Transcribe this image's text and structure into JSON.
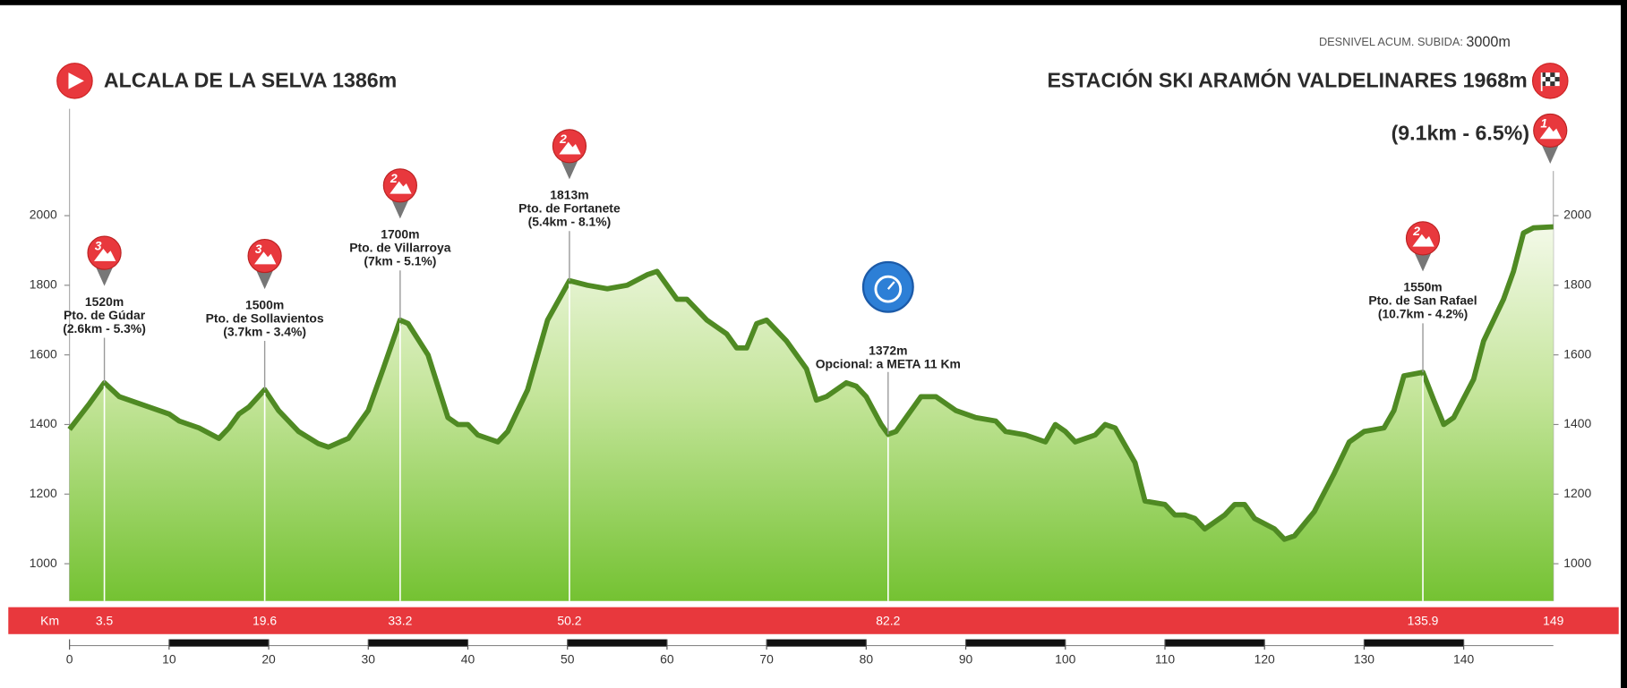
{
  "chart_data": {
    "type": "area",
    "start": "ALCALA DE LA SELVA 1386m",
    "finish": "ESTACIÓN SKI  ARAMÓN VALDELINARES 1968m",
    "climb_label": "DESNIVEL ACUM. SUBIDA:",
    "climb_total": "3000m",
    "finish_climb": {
      "detail": "(9.1km - 6.5%)",
      "category": "1"
    },
    "x": [
      0,
      2,
      3.5,
      5,
      8,
      10,
      11,
      13,
      15,
      16,
      17,
      18,
      19.6,
      21,
      23,
      25,
      26,
      28,
      30,
      31.5,
      33.2,
      34,
      36,
      38,
      39,
      40,
      41,
      43,
      44,
      46,
      48,
      50.2,
      52,
      54,
      56,
      58,
      59,
      60,
      61,
      62,
      64,
      66,
      67,
      68,
      69,
      70,
      72,
      74,
      75,
      76,
      78,
      79,
      80,
      81.5,
      82.2,
      83,
      84,
      85.5,
      87,
      89,
      91,
      93,
      94,
      96,
      98,
      99,
      100,
      101,
      103,
      104,
      105,
      107,
      108,
      110,
      111,
      112,
      113,
      114,
      116,
      117,
      118,
      119,
      121,
      122,
      123,
      125,
      127,
      128.5,
      130,
      132,
      133,
      134,
      135.9,
      137,
      138,
      139,
      141,
      142,
      144,
      145,
      146,
      147,
      149
    ],
    "values": [
      1386,
      1460,
      1520,
      1480,
      1450,
      1430,
      1410,
      1390,
      1360,
      1390,
      1430,
      1450,
      1500,
      1440,
      1380,
      1345,
      1335,
      1360,
      1440,
      1560,
      1700,
      1690,
      1600,
      1420,
      1400,
      1400,
      1370,
      1350,
      1380,
      1500,
      1700,
      1813,
      1800,
      1790,
      1800,
      1830,
      1840,
      1800,
      1760,
      1760,
      1700,
      1660,
      1620,
      1620,
      1690,
      1700,
      1640,
      1560,
      1470,
      1480,
      1520,
      1510,
      1480,
      1400,
      1372,
      1380,
      1420,
      1480,
      1480,
      1440,
      1420,
      1410,
      1380,
      1370,
      1350,
      1400,
      1380,
      1350,
      1370,
      1400,
      1390,
      1290,
      1180,
      1170,
      1140,
      1140,
      1130,
      1100,
      1140,
      1170,
      1170,
      1130,
      1100,
      1070,
      1080,
      1150,
      1260,
      1350,
      1380,
      1390,
      1440,
      1540,
      1550,
      1470,
      1400,
      1420,
      1530,
      1640,
      1760,
      1840,
      1950,
      1965,
      1968
    ],
    "color": "#4f8a23",
    "xlim": [
      0,
      149
    ],
    "ylim": [
      893,
      2307
    ],
    "xticks": [
      0,
      10,
      20,
      30,
      40,
      50,
      60,
      70,
      80,
      90,
      100,
      110,
      120,
      130,
      140
    ],
    "yticks": [
      1000,
      1200,
      1400,
      1600,
      1800,
      2000
    ],
    "km_title": "Km",
    "km_labels": [
      3.5,
      19.6,
      33.2,
      50.2,
      82.2,
      135.9,
      149
    ],
    "annotations": [
      {
        "x": 3.5,
        "y": 1520,
        "elevation": "1520m",
        "name": "Pto. de Gúdar",
        "detail": "(2.6km - 5.3%)",
        "category": "3"
      },
      {
        "x": 19.6,
        "y": 1500,
        "elevation": "1500m",
        "name": "Pto. de Sollavientos",
        "detail": "(3.7km - 3.4%)",
        "category": "3"
      },
      {
        "x": 33.2,
        "y": 1700,
        "elevation": "1700m",
        "name": "Pto. de Villarroya",
        "detail": "(7km - 5.1%)",
        "category": "2"
      },
      {
        "x": 50.2,
        "y": 1813,
        "elevation": "1813m",
        "name": "Pto. de Fortanete",
        "detail": "(5.4km - 8.1%)",
        "category": "2"
      },
      {
        "x": 82.2,
        "y": 1372,
        "elevation": "1372m",
        "note": "Opcional: a META 11 Km"
      },
      {
        "x": 135.9,
        "y": 1550,
        "elevation": "1550m",
        "name": "Pto. de San Rafael",
        "detail": "(10.7km - 4.2%)",
        "category": "2"
      }
    ]
  }
}
